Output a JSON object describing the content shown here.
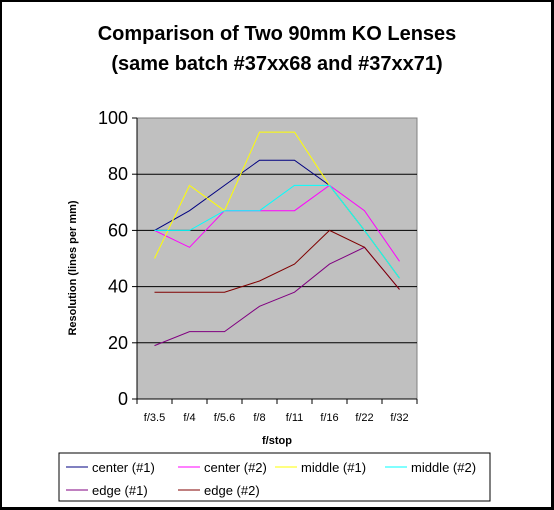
{
  "chart_data": {
    "type": "line",
    "title": "Comparison of Two 90mm KO Lenses",
    "subtitle": "(same batch #37xx68 and #37xx71)",
    "xlabel": "f/stop",
    "ylabel": "Resolution (lines per mm)",
    "categories": [
      "f/3.5",
      "f/4",
      "f/5.6",
      "f/8",
      "f/11",
      "f/16",
      "f/22",
      "f/32"
    ],
    "ylim": [
      0,
      100
    ],
    "yticks": [
      "0",
      "20",
      "40",
      "60",
      "80",
      "100"
    ],
    "grid": "horizontal major gridlines",
    "legend_position": "bottom",
    "plot_background": "#c0c0c0",
    "series": [
      {
        "name": "center (#1)",
        "color": "#000080",
        "values": [
          60,
          67,
          76,
          85,
          85,
          76,
          60,
          43
        ]
      },
      {
        "name": "center (#2)",
        "color": "#ff00ff",
        "values": [
          60,
          54,
          67,
          67,
          67,
          76,
          67,
          49
        ]
      },
      {
        "name": "middle (#1)",
        "color": "#ffff00",
        "values": [
          50,
          76,
          67,
          95,
          95,
          76,
          60,
          43
        ]
      },
      {
        "name": "middle (#2)",
        "color": "#00ffff",
        "values": [
          60,
          60,
          67,
          67,
          76,
          76,
          60,
          43
        ]
      },
      {
        "name": "edge (#1)",
        "color": "#800080",
        "values": [
          19,
          24,
          24,
          33,
          38,
          48,
          54,
          39
        ]
      },
      {
        "name": "edge (#2)",
        "color": "#800000",
        "values": [
          38,
          38,
          38,
          42,
          48,
          60,
          54,
          39
        ]
      }
    ]
  }
}
